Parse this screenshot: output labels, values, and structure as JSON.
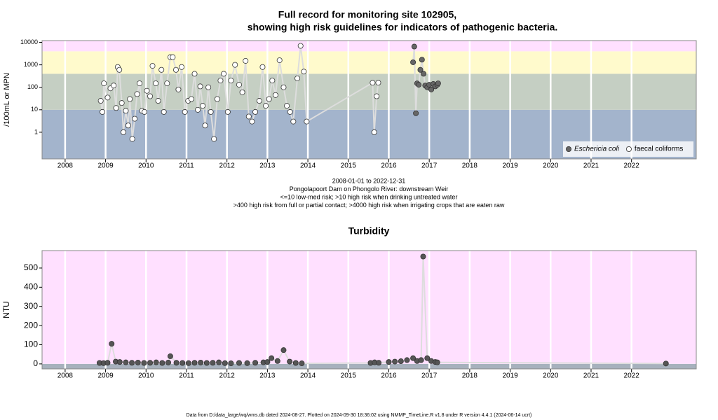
{
  "chart_data": [
    {
      "type": "scatter",
      "title": [
        "Full record for monitoring site 102905,",
        "showing high risk guidelines for indicators of pathogenic bacteria."
      ],
      "ylabel": "/100mL or MPN",
      "log_y": true,
      "xlim": [
        2007.43,
        2023.6
      ],
      "xticks": [
        2008,
        2009,
        2010,
        2011,
        2012,
        2013,
        2014,
        2015,
        2016,
        2017,
        2018,
        2019,
        2020,
        2021,
        2022
      ],
      "ylim": [
        0.065,
        12000
      ],
      "yticks": [
        1,
        10,
        100,
        1000,
        10000
      ],
      "grid": true,
      "legend": "bottom-right",
      "line_color": "#dddddd",
      "bands": [
        {
          "from": 0.065,
          "to": 10,
          "color": "#a3b4cc"
        },
        {
          "from": 10,
          "to": 400,
          "color": "#c5cfc3"
        },
        {
          "from": 400,
          "to": 4000,
          "color": "#fffacc"
        },
        {
          "from": 4000,
          "to": 12000,
          "color": "#ffe0ff"
        }
      ],
      "series": [
        {
          "name": "Eschericia coli",
          "color": "#666666",
          "x": [
            2016.6,
            2016.63,
            2016.67,
            2016.7,
            2016.74,
            2016.78,
            2016.82,
            2016.86,
            2016.9,
            2016.95,
            2017.0,
            2017.05,
            2017.1,
            2017.15,
            2017.2,
            2017.22
          ],
          "values": [
            1300,
            6500,
            7,
            150,
            130,
            600,
            1700,
            400,
            120,
            100,
            130,
            80,
            140,
            110,
            130,
            150
          ]
        },
        {
          "name": "faecal coliforms",
          "color": "#ffffff",
          "x": [
            2008.88,
            2008.92,
            2008.96,
            2009.05,
            2009.12,
            2009.2,
            2009.26,
            2009.3,
            2009.34,
            2009.4,
            2009.44,
            2009.5,
            2009.56,
            2009.6,
            2009.66,
            2009.72,
            2009.78,
            2009.84,
            2009.9,
            2009.96,
            2010.02,
            2010.1,
            2010.16,
            2010.24,
            2010.3,
            2010.38,
            2010.44,
            2010.52,
            2010.6,
            2010.66,
            2010.74,
            2010.8,
            2010.88,
            2010.96,
            2011.04,
            2011.12,
            2011.2,
            2011.28,
            2011.34,
            2011.4,
            2011.46,
            2011.54,
            2011.6,
            2011.68,
            2011.76,
            2011.84,
            2011.92,
            2012.02,
            2012.1,
            2012.2,
            2012.3,
            2012.38,
            2012.46,
            2012.54,
            2012.62,
            2012.7,
            2012.8,
            2012.88,
            2012.96,
            2013.04,
            2013.12,
            2013.2,
            2013.3,
            2013.4,
            2013.48,
            2013.56,
            2013.64,
            2013.74,
            2013.82,
            2013.9,
            2013.97,
            2015.6,
            2015.64,
            2015.7,
            2015.74
          ],
          "values": [
            25,
            8,
            150,
            35,
            90,
            120,
            12,
            800,
            600,
            20,
            1,
            9,
            2,
            30,
            0.5,
            4,
            50,
            150,
            9,
            8,
            70,
            40,
            900,
            150,
            25,
            600,
            8,
            150,
            2200,
            2200,
            600,
            80,
            800,
            8,
            25,
            30,
            400,
            10,
            110,
            15,
            2,
            100,
            8,
            0.5,
            30,
            200,
            400,
            8,
            200,
            1000,
            130,
            60,
            1500,
            5,
            3,
            8,
            25,
            800,
            15,
            30,
            200,
            45,
            1600,
            100,
            15,
            8,
            3,
            250,
            7000,
            500,
            3,
            160,
            1,
            40,
            160
          ]
        }
      ],
      "notes": [
        "2008-01-01 to 2022-12-31",
        "Pongolapoort Dam on Phongolo River: downstream Weir",
        "<=10 low-med risk; >10 high risk when drinking untreated water",
        ">400 high risk from full or partial contact; >4000 high risk when irrigating crops that are eaten raw"
      ]
    },
    {
      "type": "scatter",
      "title": [
        "Turbidity"
      ],
      "ylabel": "NTU",
      "log_y": false,
      "xlim": [
        2007.43,
        2023.6
      ],
      "xticks": [
        2008,
        2009,
        2010,
        2011,
        2012,
        2013,
        2014,
        2015,
        2016,
        2017,
        2018,
        2019,
        2020,
        2021,
        2022
      ],
      "ylim": [
        -26,
        591
      ],
      "yticks": [
        0,
        100,
        200,
        300,
        400,
        500
      ],
      "grid": true,
      "line_color": "#dddddd",
      "bands": [
        {
          "from": -26,
          "to": 0,
          "color": "#a7b1bd"
        },
        {
          "from": 0,
          "to": 591,
          "color": "#ffe0ff"
        }
      ],
      "series": [
        {
          "color": "#555555",
          "x": [
            2008.85,
            2008.95,
            2009.05,
            2009.15,
            2009.25,
            2009.35,
            2009.5,
            2009.65,
            2009.8,
            2009.95,
            2010.1,
            2010.25,
            2010.4,
            2010.55,
            2010.6,
            2010.75,
            2010.9,
            2011.05,
            2011.2,
            2011.35,
            2011.5,
            2011.65,
            2011.8,
            2011.95,
            2012.1,
            2012.3,
            2012.5,
            2012.7,
            2012.9,
            2013.0,
            2013.1,
            2013.25,
            2013.4,
            2013.55,
            2013.7,
            2013.85,
            2015.55,
            2015.65,
            2015.75,
            2016.0,
            2016.15,
            2016.3,
            2016.45,
            2016.6,
            2016.7,
            2016.8,
            2016.85,
            2016.95,
            2017.05,
            2017.15,
            2017.2,
            2022.85
          ],
          "values": [
            5,
            4,
            6,
            105,
            12,
            10,
            8,
            6,
            7,
            5,
            6,
            8,
            5,
            7,
            40,
            6,
            5,
            4,
            6,
            7,
            5,
            6,
            8,
            4,
            3,
            5,
            4,
            6,
            8,
            10,
            30,
            15,
            72,
            12,
            5,
            3,
            5,
            8,
            6,
            10,
            12,
            14,
            20,
            30,
            15,
            20,
            560,
            30,
            15,
            10,
            8,
            2
          ]
        }
      ]
    }
  ],
  "footer": "Data from D:/data_large/wq/wms.db dated 2024-08-27. Plotted on 2024-09-30 18:36:02 using NMMP_TimeLine.R v1.8 under R version 4.4.1 (2024-06-14 ucrt)"
}
